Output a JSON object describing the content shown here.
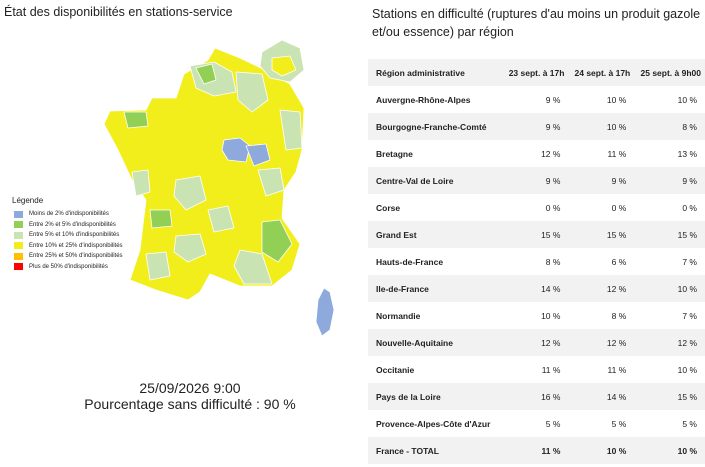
{
  "map": {
    "title": "État des disponibilités en stations-service",
    "legend": {
      "title": "Légende",
      "items": [
        "Moins de 2% d'indisponibilités",
        "Entre 2% et 5% d'indisponibilités",
        "Entre 5% et 10% d'indisponibilités",
        "Entre 10% et 25% d'indisponibilités",
        "Entre 25% et 50% d'indisponibilités",
        "Plus de 50% d'indisponibilités"
      ]
    },
    "timestamp": "25/09/2026 9:00",
    "summary": "Pourcentage sans difficulté : 90 %"
  },
  "table": {
    "title": "Stations en difficulté (ruptures d'au moins un produit gazole et/ou essence) par région",
    "header": [
      "Région administrative",
      "23 sept. à 17h",
      "24 sept. à 17h",
      "25 sept. à 9h00"
    ],
    "rows": [
      [
        "Auvergne-Rhône-Alpes",
        "9 %",
        "10 %",
        "10 %"
      ],
      [
        "Bourgogne-Franche-Comté",
        "9 %",
        "10 %",
        "8 %"
      ],
      [
        "Bretagne",
        "12 %",
        "11 %",
        "13 %"
      ],
      [
        "Centre-Val de Loire",
        "9 %",
        "9 %",
        "9 %"
      ],
      [
        "Corse",
        "0 %",
        "0 %",
        "0 %"
      ],
      [
        "Grand Est",
        "15 %",
        "15 %",
        "15 %"
      ],
      [
        "Hauts-de-France",
        "8 %",
        "6 %",
        "7 %"
      ],
      [
        "Ile-de-France",
        "14 %",
        "12 %",
        "10 %"
      ],
      [
        "Normandie",
        "10 %",
        "8 %",
        "7 %"
      ],
      [
        "Nouvelle-Aquitaine",
        "12 %",
        "12 %",
        "12 %"
      ],
      [
        "Occitanie",
        "11 %",
        "11 %",
        "10 %"
      ],
      [
        "Pays de la Loire",
        "16 %",
        "14 %",
        "15 %"
      ],
      [
        "Provence-Alpes-Côte d'Azur",
        "5 %",
        "5 %",
        "5 %"
      ]
    ],
    "total": [
      "France - TOTAL",
      "11 %",
      "10 %",
      "10 %"
    ]
  }
}
